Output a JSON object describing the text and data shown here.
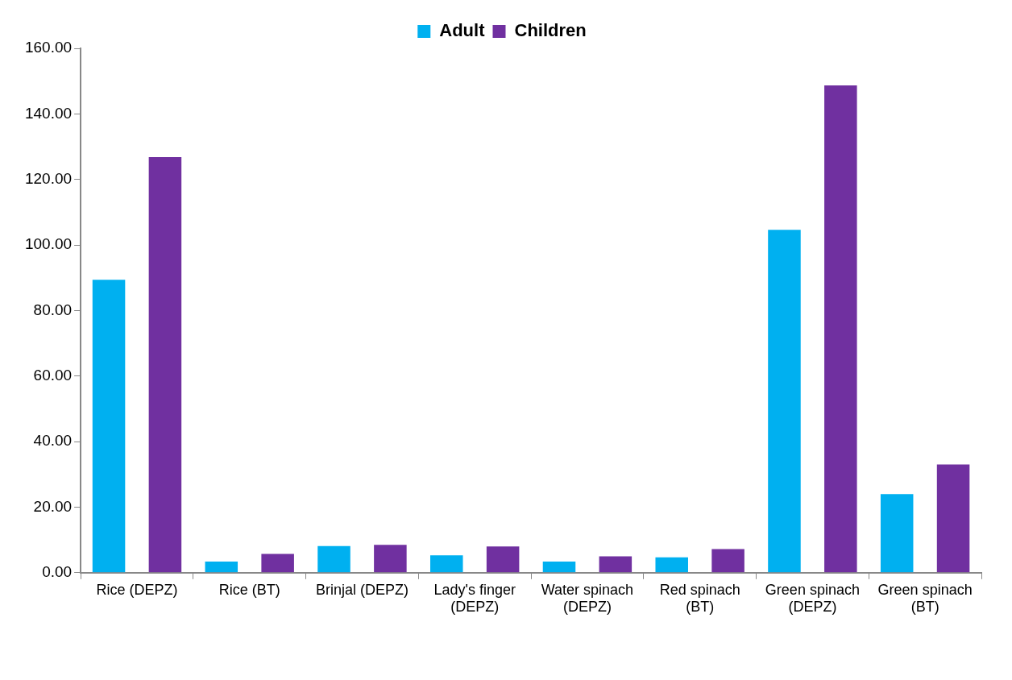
{
  "chart_data": {
    "type": "bar",
    "categories": [
      "Rice (DEPZ)",
      "Rice (BT)",
      "Brinjal (DEPZ)",
      "Lady's finger (DEPZ)",
      "Water spinach (DEPZ)",
      "Red spinach (BT)",
      "Green spinach (DEPZ)",
      "Green spinach (BT)"
    ],
    "series": [
      {
        "name": "Adult",
        "color": "#00b0f0",
        "values": [
          89.4,
          3.4,
          8.1,
          5.3,
          3.4,
          4.7,
          104.6,
          24.0
        ]
      },
      {
        "name": "Children",
        "color": "#7030a0",
        "values": [
          126.8,
          5.7,
          8.5,
          8.0,
          5.0,
          7.2,
          148.7,
          33.0
        ]
      }
    ],
    "ylim": [
      0,
      160
    ],
    "yticks": [
      {
        "value": 0,
        "label": "0.00"
      },
      {
        "value": 20,
        "label": "20.00"
      },
      {
        "value": 40,
        "label": "40.00"
      },
      {
        "value": 60,
        "label": "60.00"
      },
      {
        "value": 80,
        "label": "80.00"
      },
      {
        "value": 100,
        "label": "100.00"
      },
      {
        "value": 120,
        "label": "120.00"
      },
      {
        "value": 140,
        "label": "140.00"
      },
      {
        "value": 160,
        "label": "160.00"
      }
    ],
    "grid": false,
    "legend": "top"
  }
}
